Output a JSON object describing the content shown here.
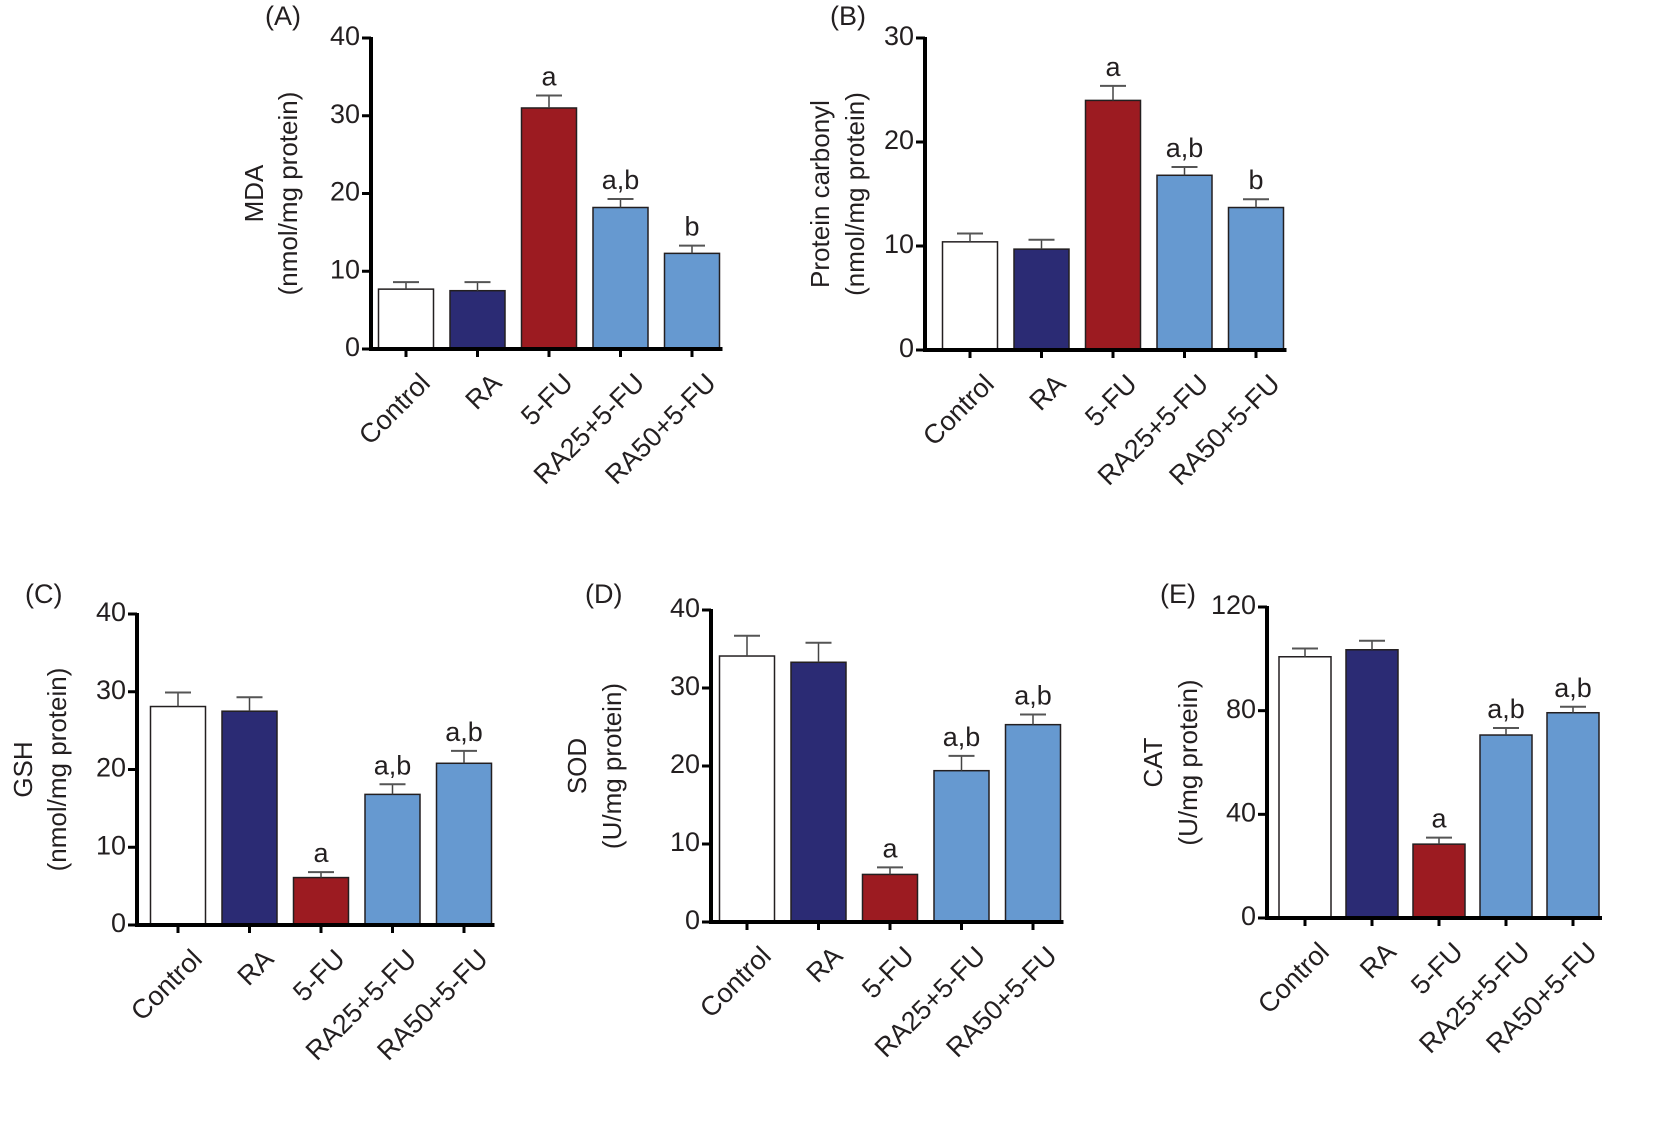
{
  "colors": {
    "Control": "#ffffff",
    "RA": "#2b2b74",
    "5-FU": "#9c1b21",
    "RA25+5-FU": "#6699d0",
    "RA50+5-FU": "#6699d0"
  },
  "chart_data": [
    {
      "type": "bar",
      "panel": "(A)",
      "title": "",
      "ylabel": [
        "MDA",
        "(nmol/mg protein)"
      ],
      "xlabel": "",
      "categories": [
        "Control",
        "RA",
        "5-FU",
        "RA25+5-FU",
        "RA50+5-FU"
      ],
      "values": [
        7.7,
        7.5,
        31.0,
        18.2,
        12.3
      ],
      "errors": [
        0.9,
        1.1,
        1.6,
        1.1,
        1.0
      ],
      "significance": [
        "",
        "",
        "a",
        "a,b",
        "b"
      ],
      "ylim": [
        0,
        40
      ],
      "yticks": [
        0,
        10,
        20,
        30,
        40
      ],
      "grid": false
    },
    {
      "type": "bar",
      "panel": "(B)",
      "title": "",
      "ylabel": [
        "Protein carbonyl",
        "(nmol/mg protein)"
      ],
      "xlabel": "",
      "categories": [
        "Control",
        "RA",
        "5-FU",
        "RA25+5-FU",
        "RA50+5-FU"
      ],
      "values": [
        10.4,
        9.7,
        24.0,
        16.8,
        13.7
      ],
      "errors": [
        0.8,
        0.9,
        1.4,
        0.8,
        0.8
      ],
      "significance": [
        "",
        "",
        "a",
        "a,b",
        "b"
      ],
      "ylim": [
        0,
        30
      ],
      "yticks": [
        0,
        10,
        20,
        30
      ],
      "grid": false
    },
    {
      "type": "bar",
      "panel": "(C)",
      "title": "",
      "ylabel": [
        "GSH",
        "(nmol/mg protein)"
      ],
      "xlabel": "",
      "categories": [
        "Control",
        "RA",
        "5-FU",
        "RA25+5-FU",
        "RA50+5-FU"
      ],
      "values": [
        28.1,
        27.5,
        6.1,
        16.8,
        20.8
      ],
      "errors": [
        1.8,
        1.8,
        0.7,
        1.3,
        1.6
      ],
      "significance": [
        "",
        "",
        "a",
        "a,b",
        "a,b"
      ],
      "ylim": [
        0,
        40
      ],
      "yticks": [
        0,
        10,
        20,
        30,
        40
      ],
      "grid": false
    },
    {
      "type": "bar",
      "panel": "(D)",
      "title": "",
      "ylabel": [
        "SOD",
        "(U/mg protein)"
      ],
      "xlabel": "",
      "categories": [
        "Control",
        "RA",
        "5-FU",
        "RA25+5-FU",
        "RA50+5-FU"
      ],
      "values": [
        34.1,
        33.3,
        6.1,
        19.4,
        25.3
      ],
      "errors": [
        2.6,
        2.5,
        0.9,
        1.9,
        1.3
      ],
      "significance": [
        "",
        "",
        "a",
        "a,b",
        "a,b"
      ],
      "ylim": [
        0,
        40
      ],
      "yticks": [
        0,
        10,
        20,
        30,
        40
      ],
      "grid": false
    },
    {
      "type": "bar",
      "panel": "(E)",
      "title": "",
      "ylabel": [
        "CAT",
        "(U/mg protein)"
      ],
      "xlabel": "",
      "categories": [
        "Control",
        "RA",
        "5-FU",
        "RA25+5-FU",
        "RA50+5-FU"
      ],
      "values": [
        100.8,
        103.5,
        28.5,
        70.6,
        79.2
      ],
      "errors": [
        3.2,
        3.5,
        2.5,
        2.7,
        2.3
      ],
      "significance": [
        "",
        "",
        "a",
        "a,b",
        "a,b"
      ],
      "ylim": [
        0,
        120
      ],
      "yticks": [
        0,
        40,
        80,
        120
      ],
      "grid": false
    }
  ]
}
